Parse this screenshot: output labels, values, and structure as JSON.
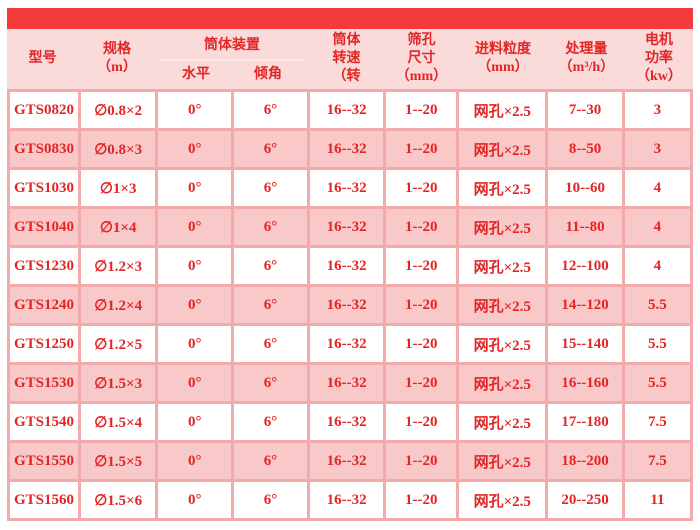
{
  "page": {
    "colors": {
      "top_bar_color": "#f43b3c",
      "header_bg": "#fbdada",
      "row_pink": "#f9c8c8",
      "grid_color": "#f2aaaa",
      "text_red": "#e32526"
    }
  },
  "table": {
    "header": {
      "model": "型号",
      "spec": "规格\n（m）",
      "device_group": "筒体装置",
      "device_level": "水平",
      "device_incline": "倾角",
      "speed": "筒体\n转速\n（转",
      "sieve": "筛孔\n尺寸\n（mm）",
      "feed": "进料粒度\n（mm）",
      "capacity": "处理量\n（m³/h）",
      "power": "电机\n功率\n（kw）"
    },
    "column_keys": [
      "model",
      "spec",
      "level",
      "incline",
      "speed",
      "sieve",
      "feed",
      "capacity",
      "power"
    ],
    "rows": [
      [
        "GTS0820",
        "∅0.8×2",
        "0°",
        "6°",
        "16--32",
        "1--20",
        "网孔×2.5",
        "7--30",
        "3"
      ],
      [
        "GTS0830",
        "∅0.8×3",
        "0°",
        "6°",
        "16--32",
        "1--20",
        "网孔×2.5",
        "8--50",
        "3"
      ],
      [
        "GTS1030",
        "∅1×3",
        "0°",
        "6°",
        "16--32",
        "1--20",
        "网孔×2.5",
        "10--60",
        "4"
      ],
      [
        "GTS1040",
        "∅1×4",
        "0°",
        "6°",
        "16--32",
        "1--20",
        "网孔×2.5",
        "11--80",
        "4"
      ],
      [
        "GTS1230",
        "∅1.2×3",
        "0°",
        "6°",
        "16--32",
        "1--20",
        "网孔×2.5",
        "12--100",
        "4"
      ],
      [
        "GTS1240",
        "∅1.2×4",
        "0°",
        "6°",
        "16--32",
        "1--20",
        "网孔×2.5",
        "14--120",
        "5.5"
      ],
      [
        "GTS1250",
        "∅1.2×5",
        "0°",
        "6°",
        "16--32",
        "1--20",
        "网孔×2.5",
        "15--140",
        "5.5"
      ],
      [
        "GTS1530",
        "∅1.5×3",
        "0°",
        "6°",
        "16--32",
        "1--20",
        "网孔×2.5",
        "16--160",
        "5.5"
      ],
      [
        "GTS1540",
        "∅1.5×4",
        "0°",
        "6°",
        "16--32",
        "1--20",
        "网孔×2.5",
        "17--180",
        "7.5"
      ],
      [
        "GTS1550",
        "∅1.5×5",
        "0°",
        "6°",
        "16--32",
        "1--20",
        "网孔×2.5",
        "18--200",
        "7.5"
      ],
      [
        "GTS1560",
        "∅1.5×6",
        "0°",
        "6°",
        "16--32",
        "1--20",
        "网孔×2.5",
        "20--250",
        "11"
      ]
    ],
    "pink_row_indices": [
      1,
      3,
      5,
      7,
      9
    ]
  }
}
